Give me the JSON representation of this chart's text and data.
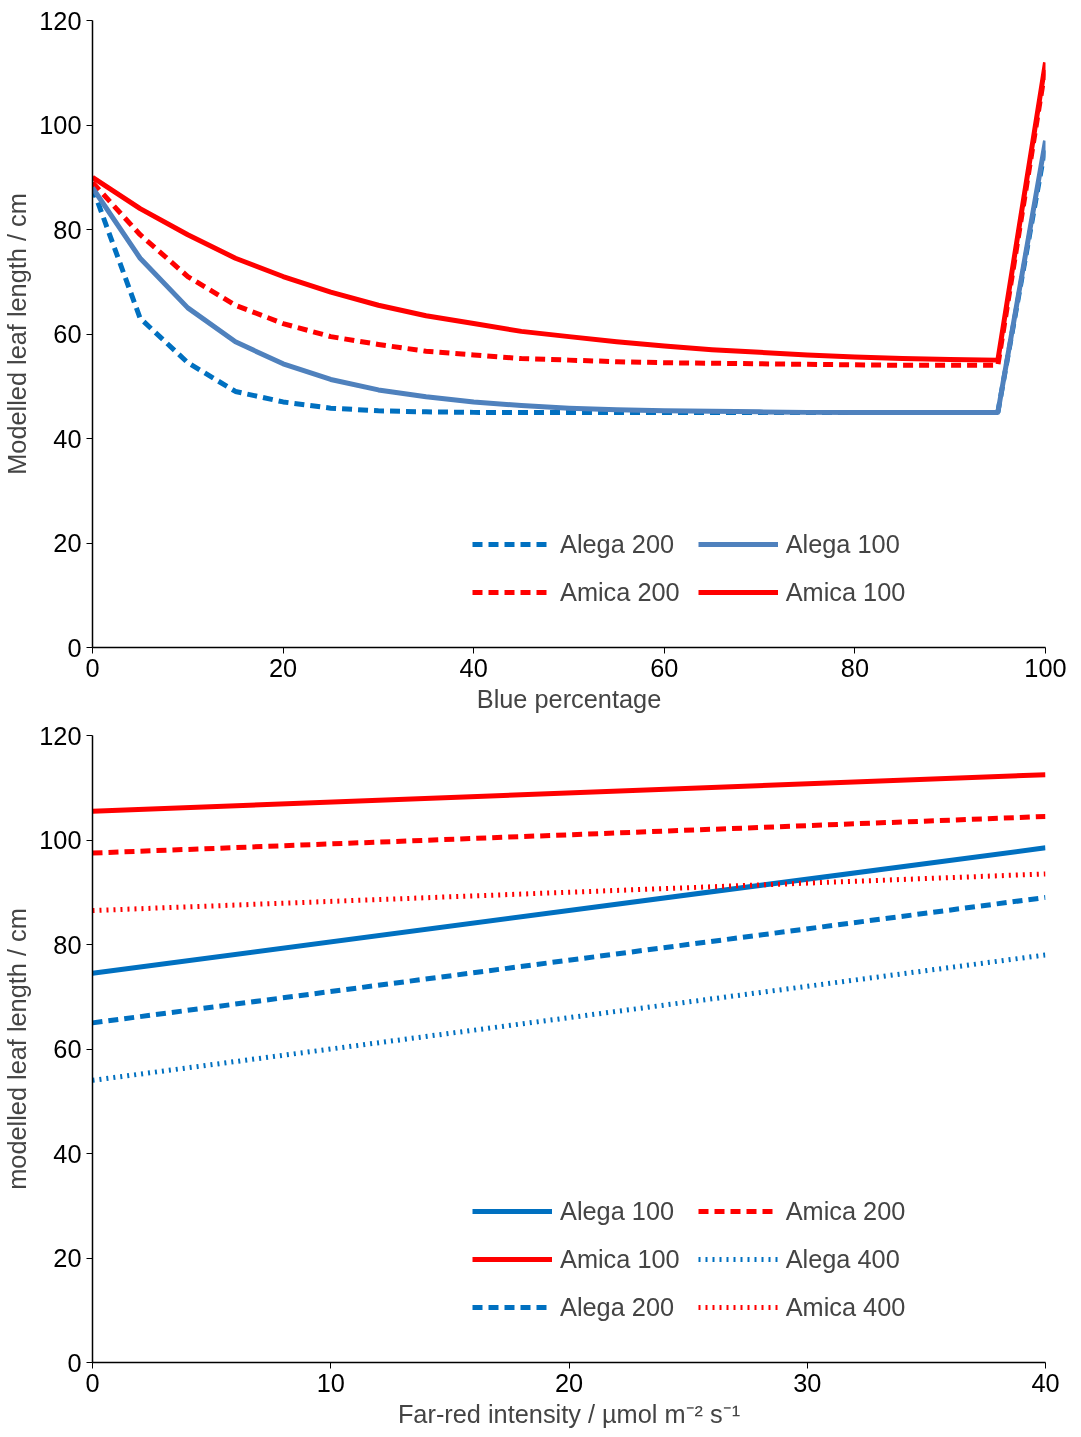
{
  "chart_data": [
    {
      "type": "line",
      "xlabel": "Blue percentage",
      "ylabel": "Modelled leaf length / cm",
      "x": [
        0,
        5,
        10,
        15,
        20,
        25,
        30,
        35,
        40,
        45,
        50,
        55,
        60,
        65,
        70,
        75,
        80,
        85,
        90,
        95,
        100
      ],
      "xlim": [
        0,
        100
      ],
      "xticks": [
        0,
        20,
        40,
        60,
        80,
        100
      ],
      "ylim": [
        0,
        120
      ],
      "yticks": [
        0,
        20,
        40,
        60,
        80,
        100,
        120
      ],
      "grid": false,
      "legend": "bottom",
      "marker": "none",
      "series": [
        {
          "name": "Alega 200",
          "color": "#0070c0",
          "line_style": "dashed",
          "values": [
            88,
            63,
            54.5,
            49,
            47,
            45.8,
            45.3,
            45.1,
            45,
            45,
            45,
            45,
            45,
            45,
            45,
            45,
            45,
            45,
            45,
            45,
            96
          ]
        },
        {
          "name": "Amica 200",
          "color": "#ff0000",
          "line_style": "dashed",
          "values": [
            89,
            79,
            71,
            65.5,
            62,
            59.5,
            58,
            56.7,
            56,
            55.3,
            55,
            54.7,
            54.5,
            54.4,
            54.3,
            54.2,
            54.1,
            54,
            54,
            54,
            111
          ]
        },
        {
          "name": "Alega 100",
          "color": "#4f81bd",
          "line_style": "solid",
          "values": [
            88,
            74.5,
            65,
            58.5,
            54.3,
            51.3,
            49.3,
            48,
            47,
            46.3,
            45.8,
            45.5,
            45.3,
            45.2,
            45.1,
            45,
            45,
            45,
            45,
            45,
            97
          ]
        },
        {
          "name": "Amica 100",
          "color": "#ff0000",
          "line_style": "solid",
          "values": [
            90,
            84,
            79,
            74.5,
            71,
            68,
            65.5,
            63.5,
            62,
            60.5,
            59.5,
            58.5,
            57.7,
            57,
            56.5,
            56,
            55.6,
            55.3,
            55.1,
            55,
            112
          ]
        }
      ]
    },
    {
      "type": "line",
      "xlabel": "Far-red intensity / µmol m⁻² s⁻¹",
      "ylabel": "modelled leaf length / cm",
      "x": [
        0,
        40
      ],
      "xlim": [
        0,
        40
      ],
      "xticks": [
        0,
        10,
        20,
        30,
        40
      ],
      "ylim": [
        0,
        120
      ],
      "yticks": [
        0,
        20,
        40,
        60,
        80,
        100,
        120
      ],
      "grid": false,
      "legend": "bottom",
      "marker": "none",
      "series": [
        {
          "name": "Alega 100",
          "color": "#0070c0",
          "line_style": "solid",
          "values": [
            74.5,
            98.5
          ]
        },
        {
          "name": "Amica 100",
          "color": "#ff0000",
          "line_style": "solid",
          "values": [
            105.5,
            112.5
          ]
        },
        {
          "name": "Alega 200",
          "color": "#0070c0",
          "line_style": "dashed",
          "values": [
            65,
            89
          ]
        },
        {
          "name": "Amica 200",
          "color": "#ff0000",
          "line_style": "dashed",
          "values": [
            97.5,
            104.5
          ]
        },
        {
          "name": "Alega 400",
          "color": "#0070c0",
          "line_style": "dotted",
          "values": [
            54,
            78
          ]
        },
        {
          "name": "Amica 400",
          "color": "#ff0000",
          "line_style": "dotted",
          "values": [
            86.5,
            93.5
          ]
        }
      ]
    }
  ]
}
